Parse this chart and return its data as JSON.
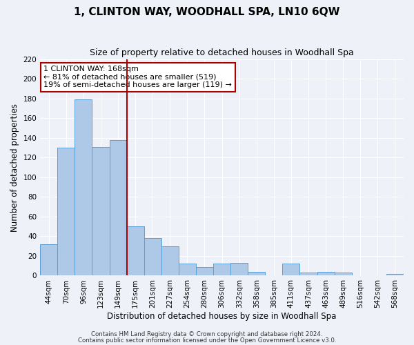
{
  "title": "1, CLINTON WAY, WOODHALL SPA, LN10 6QW",
  "subtitle": "Size of property relative to detached houses in Woodhall Spa",
  "xlabel": "Distribution of detached houses by size in Woodhall Spa",
  "ylabel": "Number of detached properties",
  "categories": [
    "44sqm",
    "70sqm",
    "96sqm",
    "123sqm",
    "149sqm",
    "175sqm",
    "201sqm",
    "227sqm",
    "254sqm",
    "280sqm",
    "306sqm",
    "332sqm",
    "358sqm",
    "385sqm",
    "411sqm",
    "437sqm",
    "463sqm",
    "489sqm",
    "516sqm",
    "542sqm",
    "568sqm"
  ],
  "values": [
    32,
    130,
    179,
    131,
    138,
    50,
    38,
    30,
    12,
    9,
    12,
    13,
    4,
    0,
    12,
    3,
    4,
    3,
    0,
    0,
    2
  ],
  "bar_color": "#aec9e8",
  "bar_edge_color": "#5a9fd4",
  "marker_label": "1 CLINTON WAY: 168sqm",
  "annotation_line1": "← 81% of detached houses are smaller (519)",
  "annotation_line2": "19% of semi-detached houses are larger (119) →",
  "vline_index": 4.5,
  "ylim": [
    0,
    220
  ],
  "yticks": [
    0,
    20,
    40,
    60,
    80,
    100,
    120,
    140,
    160,
    180,
    200,
    220
  ],
  "vline_color": "#aa0000",
  "background_color": "#eef2f8",
  "grid_color": "#ffffff",
  "footer_line1": "Contains HM Land Registry data © Crown copyright and database right 2024.",
  "footer_line2": "Contains public sector information licensed under the Open Government Licence v3.0.",
  "title_fontsize": 11,
  "subtitle_fontsize": 9,
  "axis_label_fontsize": 8.5,
  "tick_fontsize": 7.5,
  "annotation_fontsize": 8
}
